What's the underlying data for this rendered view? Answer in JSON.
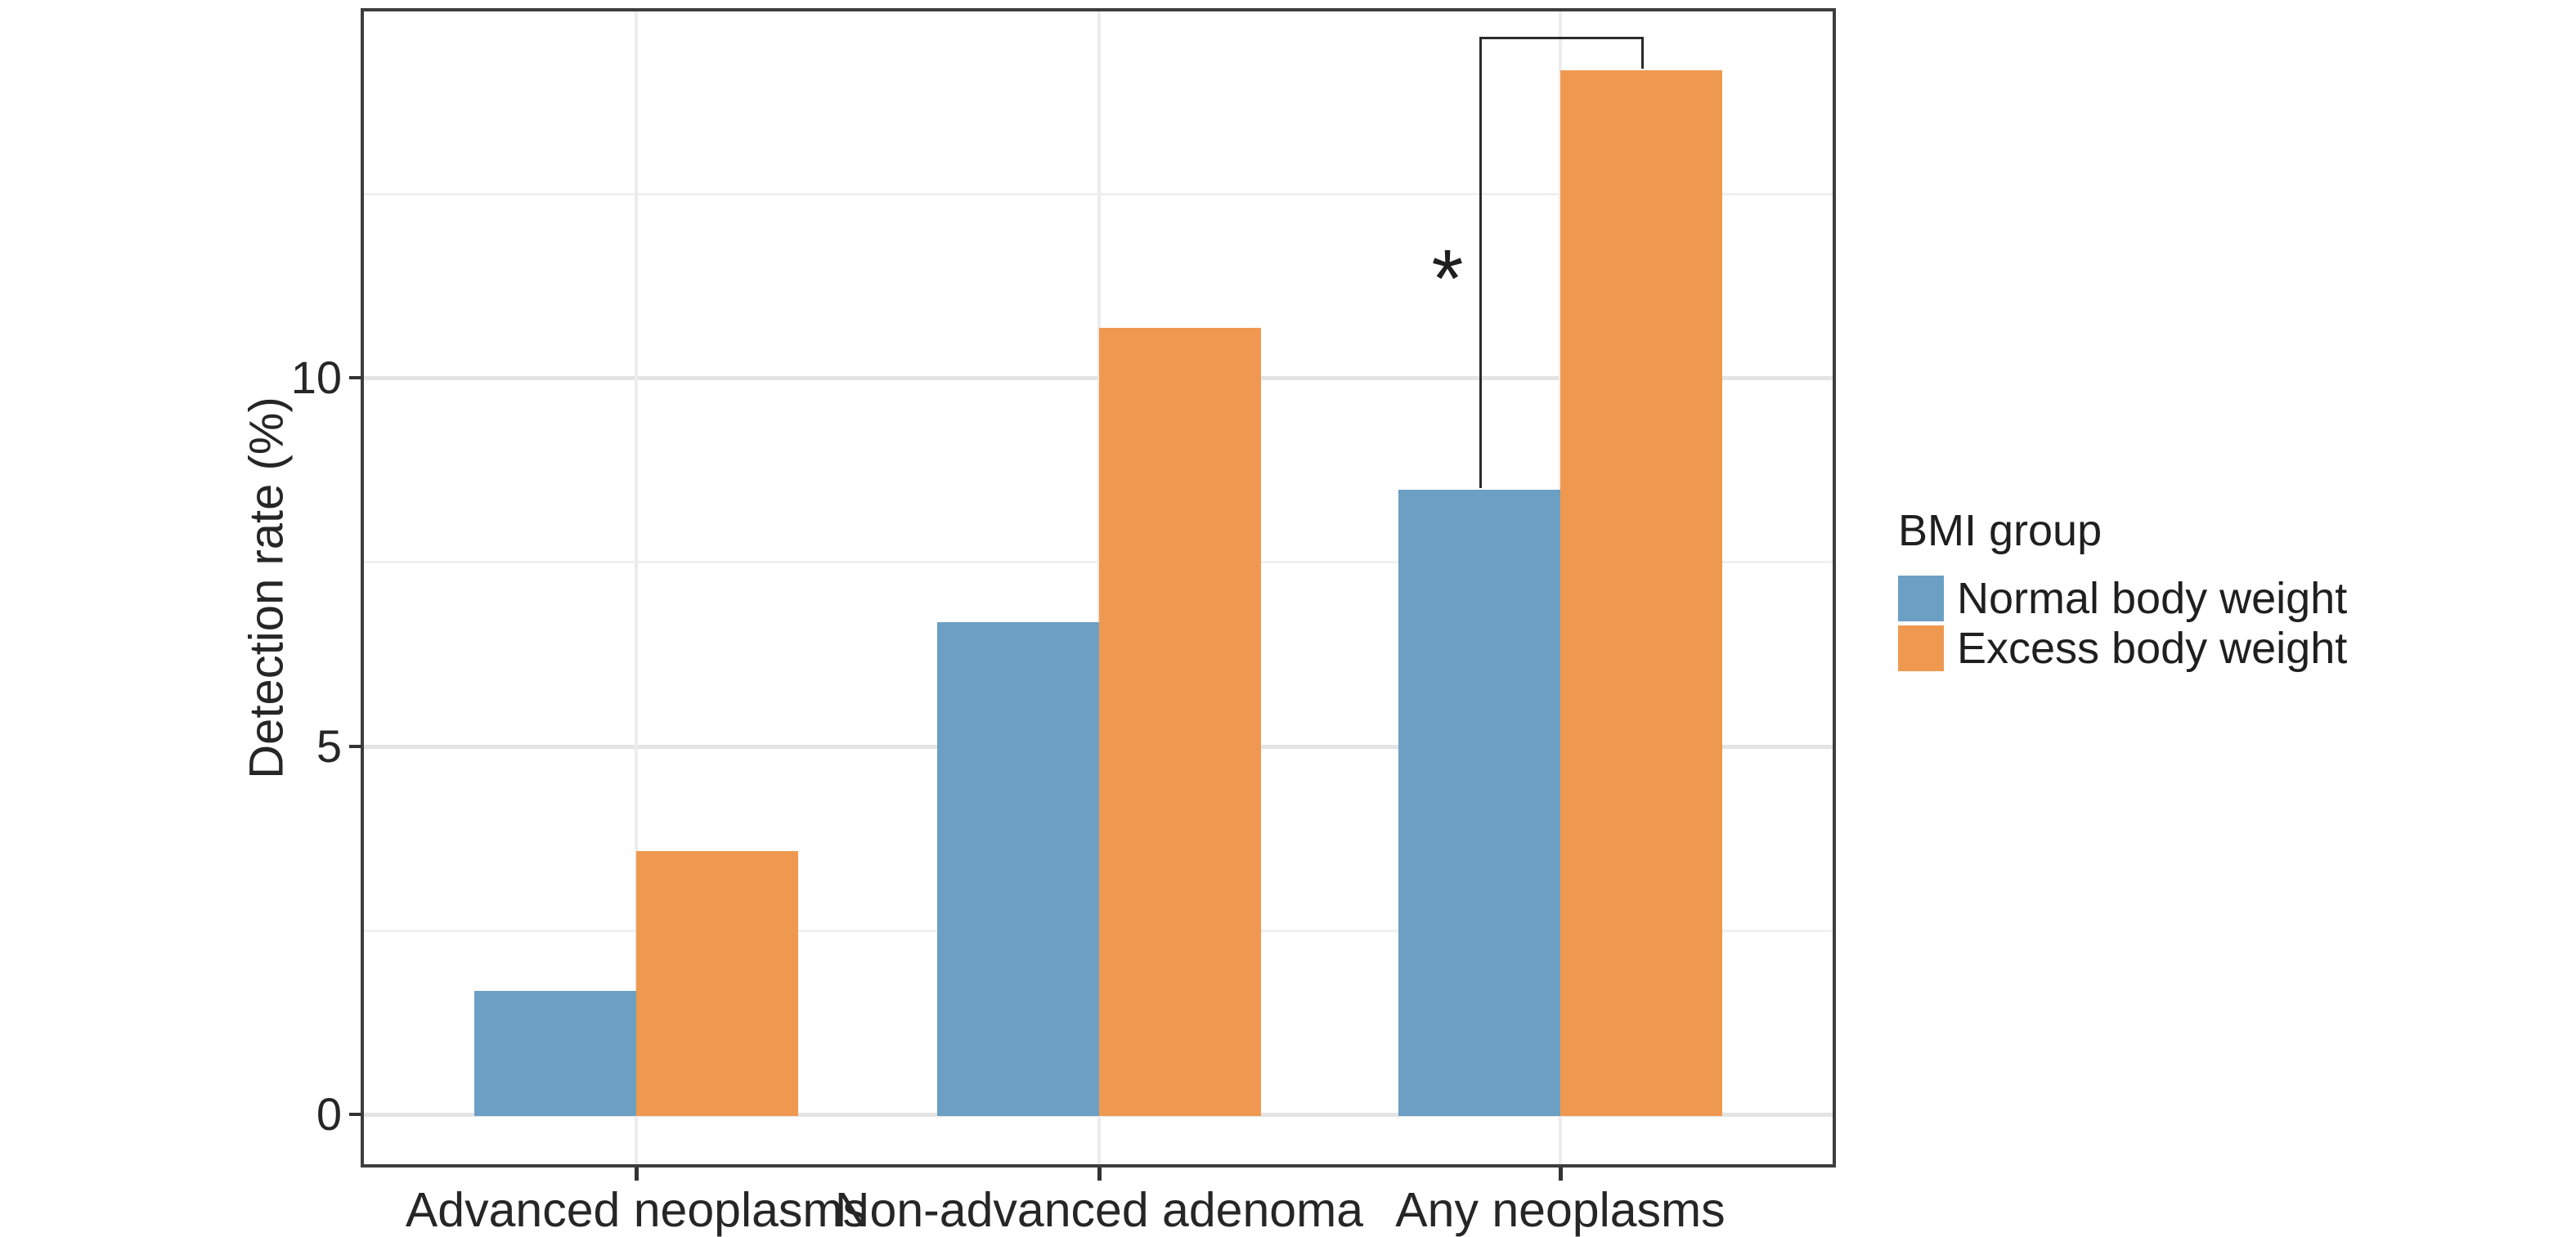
{
  "chart_data": {
    "type": "bar",
    "categories": [
      "Advanced neoplasms",
      "Non-advanced adenoma",
      "Any neoplasms"
    ],
    "series": [
      {
        "name": "Normal body weight",
        "color": "#6C9FC4",
        "values": [
          1.7,
          6.7,
          8.5
        ]
      },
      {
        "name": "Excess body weight",
        "color": "#EF9950",
        "values": [
          3.6,
          10.7,
          14.2
        ]
      }
    ],
    "xlabel": "",
    "ylabel": "Detection rate (%)",
    "ylim": [
      -0.7,
      15.1
    ],
    "yticks": [
      0,
      5,
      10
    ],
    "minor_gridlines": [
      2.5,
      7.5,
      12.5
    ],
    "grid": "on",
    "legend_position": "right",
    "significance": {
      "label": "*",
      "category": "Any neoplasms",
      "between": [
        "Normal body weight",
        "Excess body weight"
      ]
    }
  },
  "y_axis": {
    "title": "Detection rate (%)",
    "ticks": [
      {
        "label": "0",
        "value": 0
      },
      {
        "label": "5",
        "value": 5
      },
      {
        "label": "10",
        "value": 10
      }
    ]
  },
  "legend": {
    "title": "BMI group",
    "items": [
      {
        "label": "Normal body weight",
        "color": "#6C9FC4"
      },
      {
        "label": "Excess body weight",
        "color": "#EF9950"
      }
    ]
  }
}
